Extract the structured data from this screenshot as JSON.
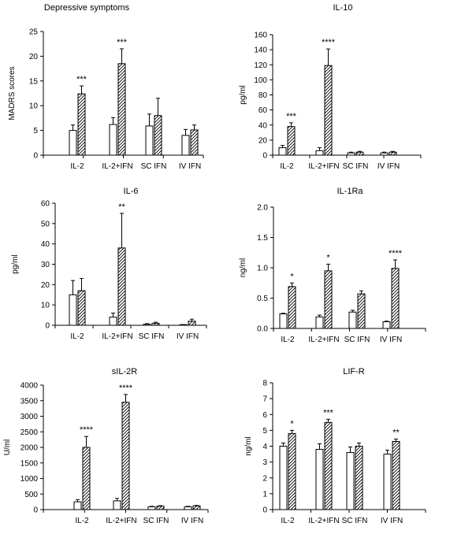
{
  "chart_data": [
    {
      "type": "bar",
      "title": "Depressive symptoms",
      "ylabel": "MADRS scores",
      "ylim": [
        0,
        25
      ],
      "yticks": [
        "0",
        "5",
        "10",
        "15",
        "20",
        "25"
      ],
      "categories": [
        "IL-2",
        "IL-2+IFN",
        "SC IFN",
        "IV IFN"
      ],
      "series": [
        {
          "fill": "open",
          "values": [
            5.0,
            6.2,
            5.9,
            4.0
          ],
          "errors": [
            1.1,
            1.4,
            2.4,
            1.2
          ]
        },
        {
          "fill": "hatched",
          "values": [
            12.4,
            18.5,
            8.0,
            5.1
          ],
          "errors": [
            1.6,
            3.0,
            3.5,
            1.0
          ]
        }
      ],
      "significance": [
        "***",
        "***",
        "",
        ""
      ]
    },
    {
      "type": "bar",
      "title": "IL-10",
      "ylabel": "pg/ml",
      "ylim": [
        0,
        160
      ],
      "yticks": [
        "0",
        "20",
        "40",
        "60",
        "80",
        "100",
        "120",
        "140",
        "160"
      ],
      "categories": [
        "IL-2",
        "IL-2+IFN",
        "SC IFN",
        "IV IFN"
      ],
      "series": [
        {
          "fill": "open",
          "values": [
            10,
            6,
            3,
            3
          ],
          "errors": [
            3,
            4,
            1,
            1
          ]
        },
        {
          "fill": "hatched",
          "values": [
            38,
            119,
            4,
            4
          ],
          "errors": [
            5,
            22,
            1,
            1
          ]
        }
      ],
      "significance": [
        "***",
        "****",
        "",
        ""
      ]
    },
    {
      "type": "bar",
      "title": "IL-6",
      "ylabel": "pg/ml",
      "ylim": [
        0,
        60
      ],
      "yticks": [
        "0",
        "10",
        "20",
        "30",
        "40",
        "50",
        "60"
      ],
      "categories": [
        "IL-2",
        "IL-2+IFN",
        "SC IFN",
        "IV IFN"
      ],
      "series": [
        {
          "fill": "open",
          "values": [
            15,
            4,
            0.5,
            0.2
          ],
          "errors": [
            7,
            2,
            0.3,
            0.1
          ]
        },
        {
          "fill": "hatched",
          "values": [
            17,
            38,
            1,
            2
          ],
          "errors": [
            6,
            17,
            0.5,
            1
          ]
        }
      ],
      "significance": [
        "",
        "**",
        "",
        ""
      ]
    },
    {
      "type": "bar",
      "title": "IL-1Ra",
      "ylabel": "ng/ml",
      "ylim": [
        0,
        2.0
      ],
      "yticks": [
        "0.0",
        "0.5",
        "1.0",
        "1.5",
        "2.0"
      ],
      "categories": [
        "IL-2",
        "IL-2+IFN",
        "SC IFN",
        "IV IFN"
      ],
      "series": [
        {
          "fill": "open",
          "values": [
            0.24,
            0.19,
            0.27,
            0.11
          ],
          "errors": [
            0.01,
            0.03,
            0.03,
            0.01
          ]
        },
        {
          "fill": "hatched",
          "values": [
            0.69,
            0.95,
            0.57,
            0.99
          ],
          "errors": [
            0.06,
            0.11,
            0.05,
            0.14
          ]
        }
      ],
      "significance": [
        "*",
        "*",
        "",
        "****"
      ]
    },
    {
      "type": "bar",
      "title": "sIL-2R",
      "ylabel": "U/ml",
      "ylim": [
        0,
        4000
      ],
      "yticks": [
        "0",
        "500",
        "1000",
        "1500",
        "2000",
        "2500",
        "3000",
        "3500",
        "4000"
      ],
      "categories": [
        "IL-2",
        "IL-2+IFN",
        "SC IFN",
        "IV IFN"
      ],
      "series": [
        {
          "fill": "open",
          "values": [
            250,
            280,
            90,
            90
          ],
          "errors": [
            70,
            80,
            15,
            15
          ]
        },
        {
          "fill": "hatched",
          "values": [
            2000,
            3450,
            110,
            120
          ],
          "errors": [
            350,
            250,
            15,
            15
          ]
        }
      ],
      "significance": [
        "****",
        "****",
        "",
        ""
      ]
    },
    {
      "type": "bar",
      "title": "LIF-R",
      "ylabel": "ng/ml",
      "ylim": [
        0,
        8
      ],
      "yticks": [
        "0",
        "1",
        "2",
        "3",
        "4",
        "5",
        "6",
        "7",
        "8"
      ],
      "categories": [
        "IL-2",
        "IL-2+IFN",
        "SC IFN",
        "IV IFN"
      ],
      "series": [
        {
          "fill": "open",
          "values": [
            4.0,
            3.8,
            3.6,
            3.5
          ],
          "errors": [
            0.2,
            0.35,
            0.35,
            0.25
          ]
        },
        {
          "fill": "hatched",
          "values": [
            4.8,
            5.5,
            4.0,
            4.3
          ],
          "errors": [
            0.2,
            0.2,
            0.2,
            0.15
          ]
        }
      ],
      "significance": [
        "*",
        "***",
        "",
        "**"
      ]
    }
  ]
}
